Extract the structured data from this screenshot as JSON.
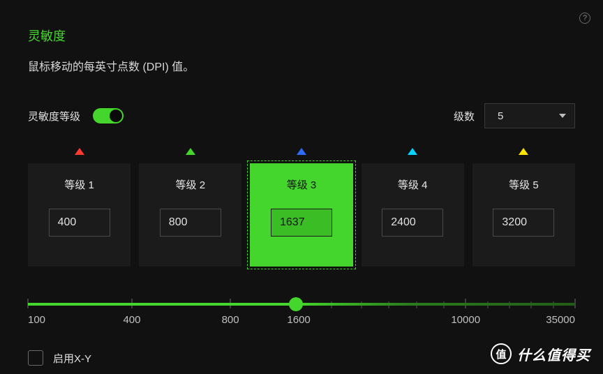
{
  "colors": {
    "bg": "#111111",
    "accent": "#44d62c",
    "card_bg": "#1b1b1b",
    "text": "#e0e0e0",
    "muted": "#888888"
  },
  "help_glyph": "?",
  "title": "灵敏度",
  "description": "鼠标移动的每英寸点数 (DPI) 值。",
  "toggle": {
    "label": "灵敏度等级",
    "on": true
  },
  "stage_count": {
    "label": "级数",
    "value": "5"
  },
  "stages": [
    {
      "label": "等级 1",
      "value": "400",
      "marker_color": "#ff3b30",
      "active": false
    },
    {
      "label": "等级 2",
      "value": "800",
      "marker_color": "#44d62c",
      "active": false
    },
    {
      "label": "等级 3",
      "value": "1637",
      "marker_color": "#2f6bff",
      "active": true
    },
    {
      "label": "等级 4",
      "value": "2400",
      "marker_color": "#00d4ff",
      "active": false
    },
    {
      "label": "等级 5",
      "value": "3200",
      "marker_color": "#ffe600",
      "active": false
    }
  ],
  "slider": {
    "min": 100,
    "max": 35000,
    "value": 1637,
    "fill_percent": 49,
    "major_ticks": [
      {
        "label": "100",
        "pos": 0
      },
      {
        "label": "400",
        "pos": 19
      },
      {
        "label": "800",
        "pos": 37
      },
      {
        "label": "1600",
        "pos": 49.5
      },
      {
        "label": "10000",
        "pos": 80
      },
      {
        "label": "35000",
        "pos": 100
      }
    ],
    "minor_ticks": [
      55.5,
      61,
      66,
      71,
      76,
      84,
      88,
      92,
      96
    ]
  },
  "xy_checkbox": {
    "label": "启用X-Y",
    "checked": false
  },
  "watermark": {
    "icon_text": "值",
    "text": "什么值得买"
  }
}
